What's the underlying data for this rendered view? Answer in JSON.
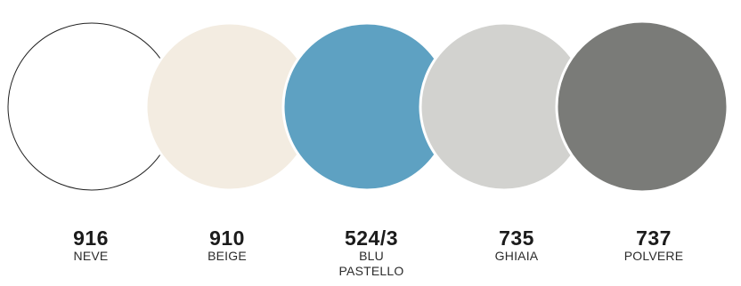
{
  "swatches": [
    {
      "code": "916",
      "name": "NEVE",
      "color": "#ffffff",
      "outline": "#222222"
    },
    {
      "code": "910",
      "name": "BEIGE",
      "color": "#f3ece1"
    },
    {
      "code": "524/3",
      "name": "BLU PASTELLO",
      "name_lines": [
        "BLU",
        "PASTELLO"
      ],
      "color": "#5ea1c2"
    },
    {
      "code": "735",
      "name": "GHIAIA",
      "color": "#d2d2cf"
    },
    {
      "code": "737",
      "name": "POLVERE",
      "color": "#7a7b78"
    }
  ]
}
